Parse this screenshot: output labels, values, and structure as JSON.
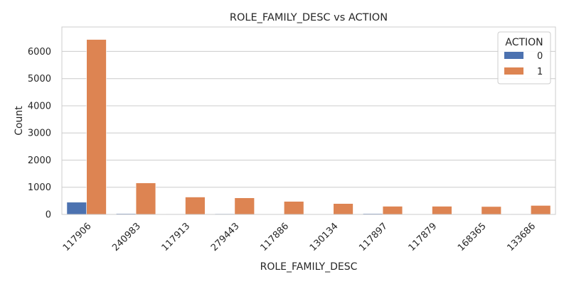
{
  "chart_data": {
    "type": "bar",
    "title": "ROLE_FAMILY_DESC vs ACTION",
    "xlabel": "ROLE_FAMILY_DESC",
    "ylabel": "Count",
    "categories": [
      "117906",
      "240983",
      "117913",
      "279443",
      "117886",
      "130134",
      "117897",
      "117879",
      "168365",
      "133686"
    ],
    "series": [
      {
        "name": "0",
        "color": "#4c72b0",
        "values": [
          450,
          30,
          15,
          25,
          20,
          10,
          30,
          10,
          5,
          15
        ]
      },
      {
        "name": "1",
        "color": "#dd8452",
        "values": [
          6440,
          1160,
          640,
          610,
          480,
          400,
          300,
          300,
          290,
          330
        ]
      }
    ],
    "ylim": [
      0,
      6900
    ],
    "yticks": [
      0,
      1000,
      2000,
      3000,
      4000,
      5000,
      6000
    ],
    "grid": true,
    "legend": {
      "title": "ACTION",
      "placement": "top-right"
    }
  }
}
